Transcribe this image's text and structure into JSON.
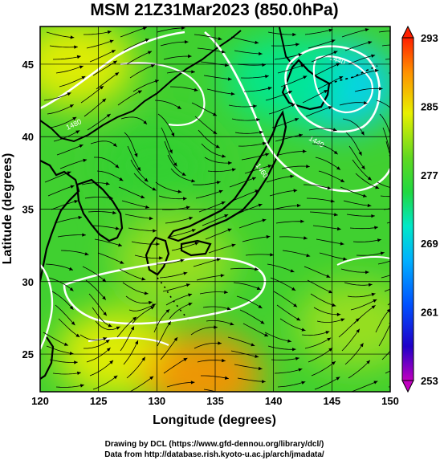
{
  "chart_data": {
    "type": "heatmap",
    "title": "MSM 21Z31Mar2023 (850.0hPa)",
    "xlabel": "Longitude (degrees)",
    "ylabel": "Latitude  (degrees)",
    "xlim": [
      120,
      150
    ],
    "ylim": [
      22.4,
      47.6
    ],
    "x_ticks": [
      120,
      125,
      130,
      135,
      140,
      145,
      150
    ],
    "y_ticks": [
      25,
      30,
      35,
      40,
      45
    ],
    "grid": true,
    "colorbar": {
      "ticks": [
        293,
        285,
        277,
        269,
        261,
        253
      ],
      "range": [
        253,
        293
      ],
      "colors": [
        "#c000c0",
        "#0000c8",
        "#0060ff",
        "#00d0ff",
        "#00e890",
        "#30d030",
        "#a0e020",
        "#f0f000",
        "#ff9000",
        "#ff2000"
      ]
    },
    "fields": [
      {
        "lon": 145.5,
        "lat": 43.5,
        "value": 266
      },
      {
        "lon": 141.0,
        "lat": 44.0,
        "value": 271
      },
      {
        "lon": 126.5,
        "lat": 25.0,
        "value": 286
      },
      {
        "lon": 134.0,
        "lat": 23.5,
        "value": 288
      },
      {
        "lon": 123.0,
        "lat": 45.0,
        "value": 283
      },
      {
        "lon": 130.0,
        "lat": 38.0,
        "value": 276
      },
      {
        "lon": 147.0,
        "lat": 27.0,
        "value": 281
      },
      {
        "lon": 131.5,
        "lat": 31.5,
        "value": 279
      }
    ],
    "contours": [
      {
        "label": "1440"
      },
      {
        "label": "1460"
      },
      {
        "label": "1480"
      },
      {
        "label": "1500"
      },
      {
        "label": "1520"
      }
    ]
  },
  "credits": {
    "line1": "Drawing by DCL (https://www.gfd-dennou.org/library/dcl/)",
    "line2": "Data from http://database.rish.kyoto-u.ac.jp/arch/jmadata/"
  }
}
